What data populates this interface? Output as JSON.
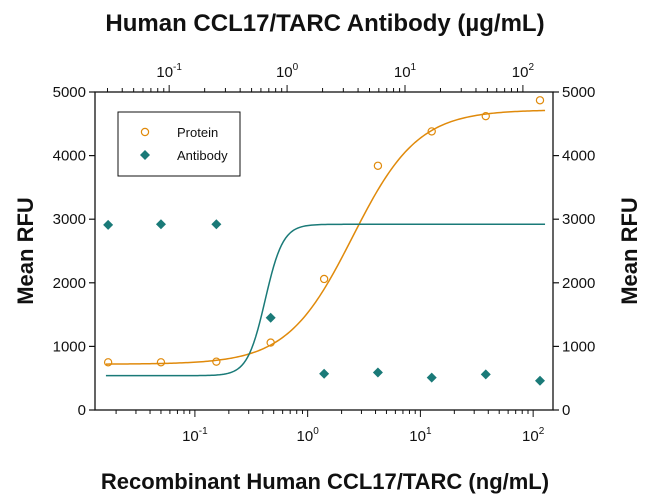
{
  "chart_data": {
    "type": "scatter",
    "title": "Human CCL17/TARC Antibody (µg/mL)",
    "xlabel": "Recombinant Human CCL17/TARC (ng/mL)",
    "ylabel_left": "Mean RFU",
    "ylabel_right": "Mean RFU",
    "x_scale": "log",
    "xlim": [
      0.013,
      150
    ],
    "ylim": [
      0,
      5000
    ],
    "y_ticks": [
      "0",
      "1000",
      "2000",
      "3000",
      "4000",
      "5000"
    ],
    "y_tick_values": [
      0,
      1000,
      2000,
      3000,
      4000,
      5000
    ],
    "x_bottom_ticks": [
      {
        "value": 0.1,
        "base": "10",
        "exp": "-1"
      },
      {
        "value": 1,
        "base": "10",
        "exp": "0"
      },
      {
        "value": 10,
        "base": "10",
        "exp": "1"
      },
      {
        "value": 100,
        "base": "10",
        "exp": "2"
      }
    ],
    "x_top_ticks": [
      {
        "value": 0.1,
        "base": "10",
        "exp": "-1"
      },
      {
        "value": 1,
        "base": "10",
        "exp": "0"
      },
      {
        "value": 10,
        "base": "10",
        "exp": "1"
      },
      {
        "value": 100,
        "base": "10",
        "exp": "2"
      }
    ],
    "x_top_range": [
      0.0235,
      180
    ],
    "series": [
      {
        "name": "Protein",
        "color": "#e08a0b",
        "marker": "open-circle",
        "x": [
          0.017,
          0.05,
          0.155,
          0.47,
          1.4,
          4.2,
          12.6,
          38,
          115
        ],
        "y": [
          750,
          750,
          760,
          1060,
          2060,
          3840,
          4380,
          4620,
          4870
        ],
        "fit": {
          "bottom": 720,
          "top": 4720,
          "ec50": 2.5,
          "hill": 1.5
        }
      },
      {
        "name": "Antibody",
        "color": "#1a7a78",
        "marker": "filled-diamond",
        "x": [
          0.017,
          0.05,
          0.155,
          0.47,
          1.4,
          4.2,
          12.6,
          38,
          115
        ],
        "y": [
          2910,
          2920,
          2920,
          1450,
          570,
          590,
          510,
          560,
          460
        ],
        "fit": {
          "bottom": 540,
          "top": 2920,
          "ec50": 0.42,
          "hill": 5.5
        }
      }
    ],
    "legend": {
      "position": "top-left",
      "entries": [
        "Protein",
        "Antibody"
      ]
    },
    "grid": false
  }
}
